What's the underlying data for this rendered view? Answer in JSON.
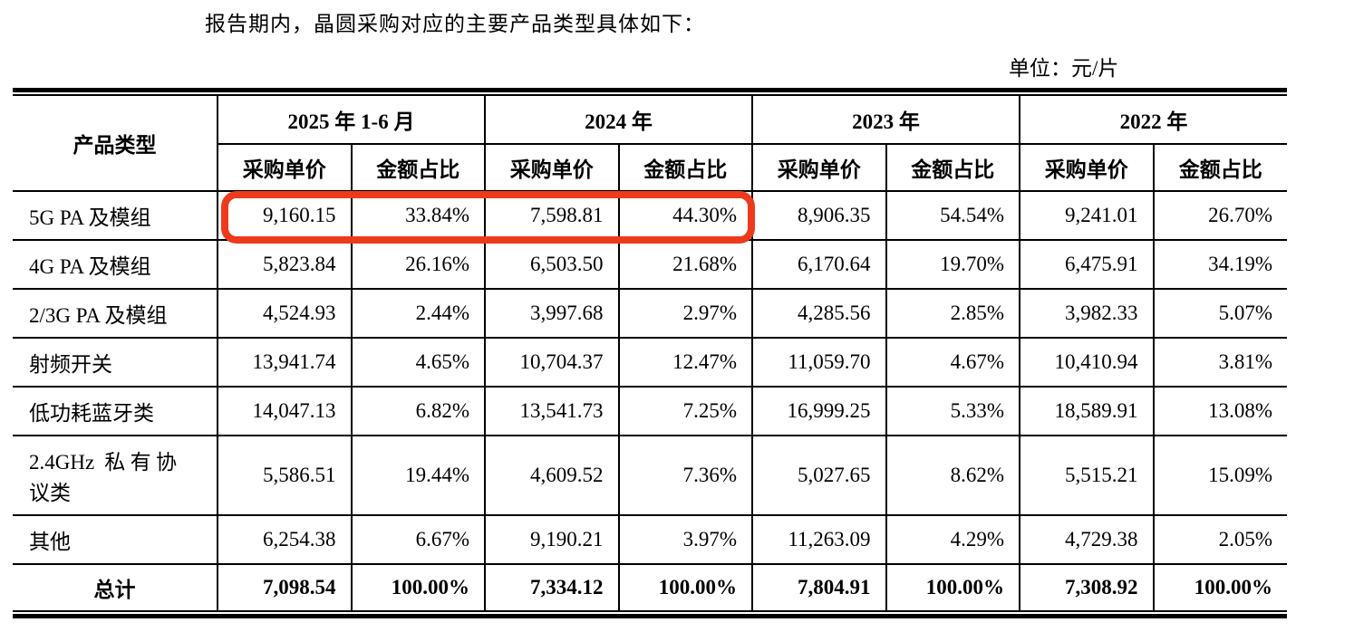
{
  "title": "报告期内，晶圆采购对应的主要产品类型具体如下：",
  "unit_label": "单位：元/片",
  "highlight_color": "#ee3a1c",
  "table": {
    "product_col_header": "产品类型",
    "period_headers": [
      "2025 年 1-6 月",
      "2024 年",
      "2023 年",
      "2022 年"
    ],
    "sub_headers": [
      "采购单价",
      "金额占比"
    ],
    "rows": [
      {
        "label": "5G PA 及模组",
        "values": [
          "9,160.15",
          "33.84%",
          "7,598.81",
          "44.30%",
          "8,906.35",
          "54.54%",
          "9,241.01",
          "26.70%"
        ]
      },
      {
        "label": "4G PA 及模组",
        "values": [
          "5,823.84",
          "26.16%",
          "6,503.50",
          "21.68%",
          "6,170.64",
          "19.70%",
          "6,475.91",
          "34.19%"
        ]
      },
      {
        "label": "2/3G PA 及模组",
        "values": [
          "4,524.93",
          "2.44%",
          "3,997.68",
          "2.97%",
          "4,285.56",
          "2.85%",
          "3,982.33",
          "5.07%"
        ]
      },
      {
        "label": "射频开关",
        "values": [
          "13,941.74",
          "4.65%",
          "10,704.37",
          "12.47%",
          "11,059.70",
          "4.67%",
          "10,410.94",
          "3.81%"
        ]
      },
      {
        "label": "低功耗蓝牙类",
        "values": [
          "14,047.13",
          "6.82%",
          "13,541.73",
          "7.25%",
          "16,999.25",
          "5.33%",
          "18,589.91",
          "13.08%"
        ]
      },
      {
        "label": "2.4GHz 私有协议类",
        "values": [
          "5,586.51",
          "19.44%",
          "4,609.52",
          "7.36%",
          "5,027.65",
          "8.62%",
          "5,515.21",
          "15.09%"
        ]
      },
      {
        "label": "其他",
        "values": [
          "6,254.38",
          "6.67%",
          "9,190.21",
          "3.97%",
          "11,263.09",
          "4.29%",
          "4,729.38",
          "2.05%"
        ]
      }
    ],
    "total_row": {
      "label": "总计",
      "values": [
        "7,098.54",
        "100.00%",
        "7,334.12",
        "100.00%",
        "7,804.91",
        "100.00%",
        "7,308.92",
        "100.00%"
      ]
    }
  }
}
